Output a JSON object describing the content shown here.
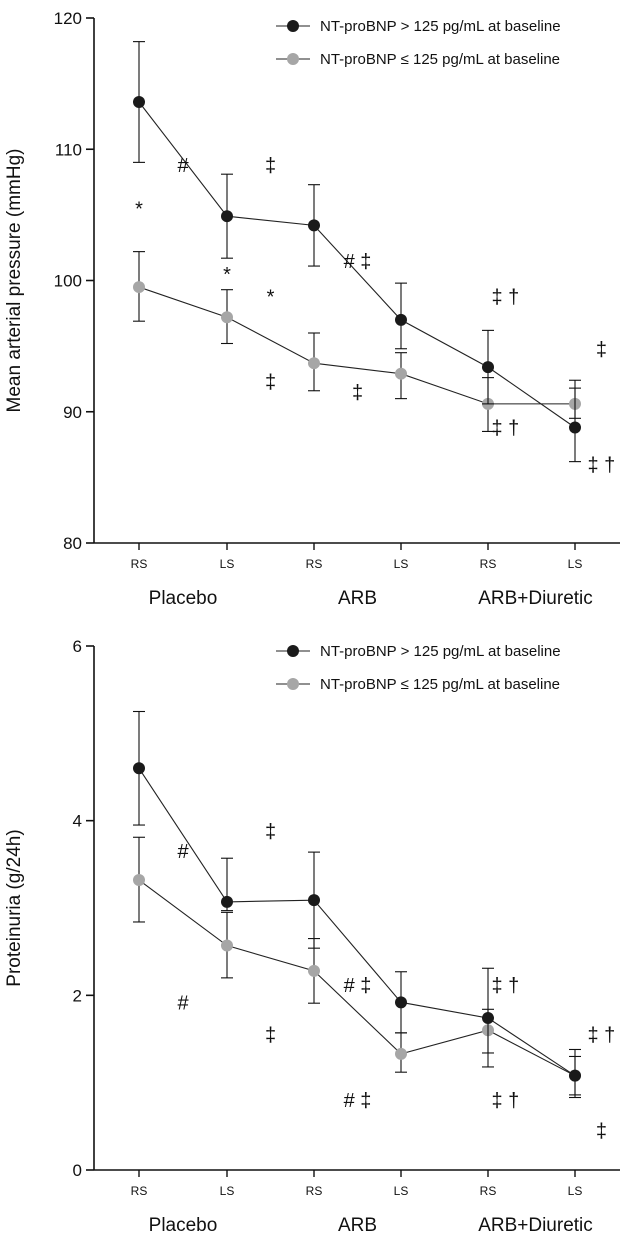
{
  "chart_data": [
    {
      "type": "line",
      "ylabel": "Mean arterial pressure (mmHg)",
      "ylim": [
        80,
        120
      ],
      "yticks": [
        80,
        90,
        100,
        110,
        120
      ],
      "conditions": [
        "RS",
        "LS",
        "RS",
        "LS",
        "RS",
        "LS"
      ],
      "groups": [
        "Placebo",
        "ARB",
        "ARB+Diuretic"
      ],
      "legend_position": "top-right",
      "series": [
        {
          "name": "NT-proBNP > 125 pg/mL at baseline",
          "color": "#1a1a1a",
          "values": [
            113.6,
            104.9,
            104.2,
            97.0,
            93.4,
            88.8
          ],
          "err_upper": [
            118.2,
            108.1,
            107.3,
            99.8,
            96.2,
            92.4
          ],
          "err_lower": [
            109.0,
            101.7,
            101.1,
            94.8,
            90.6,
            86.2
          ]
        },
        {
          "name": "NT-proBNP ≤ 125 pg/mL at baseline",
          "color": "#a6a6a6",
          "values": [
            99.5,
            97.2,
            93.7,
            92.9,
            90.6,
            90.6
          ],
          "err_upper": [
            102.2,
            99.3,
            96.0,
            94.5,
            92.6,
            91.8
          ],
          "err_lower": [
            96.9,
            95.2,
            91.6,
            91.0,
            88.5,
            89.5
          ]
        }
      ],
      "annotations": [
        {
          "x": 0,
          "y": 105.5,
          "text": "*"
        },
        {
          "x": 0.5,
          "y": 108.8,
          "text": "#"
        },
        {
          "x": 1,
          "y": 100.5,
          "text": "*"
        },
        {
          "x": 1.5,
          "y": 108.8,
          "text": "‡"
        },
        {
          "x": 1.5,
          "y": 98.8,
          "text": "*"
        },
        {
          "x": 1.5,
          "y": 92.3,
          "text": "‡"
        },
        {
          "x": 2.5,
          "y": 101.5,
          "text": "# ‡"
        },
        {
          "x": 2.5,
          "y": 91.5,
          "text": "‡"
        },
        {
          "x": 4.2,
          "y": 98.8,
          "text": "‡ †"
        },
        {
          "x": 4.2,
          "y": 88.8,
          "text": "‡ †"
        },
        {
          "x": 5.3,
          "y": 94.8,
          "text": "‡"
        },
        {
          "x": 5.3,
          "y": 86.0,
          "text": "‡ †"
        }
      ]
    },
    {
      "type": "line",
      "ylabel": "Proteinuria (g/24h)",
      "ylim": [
        0,
        6
      ],
      "yticks": [
        0,
        2,
        4,
        6
      ],
      "conditions": [
        "RS",
        "LS",
        "RS",
        "LS",
        "RS",
        "LS"
      ],
      "groups": [
        "Placebo",
        "ARB",
        "ARB+Diuretic"
      ],
      "legend_position": "top-right",
      "series": [
        {
          "name": "NT-proBNP > 125 pg/mL at baseline",
          "color": "#1a1a1a",
          "values": [
            4.6,
            3.07,
            3.09,
            1.92,
            1.74,
            1.08
          ],
          "err_upper": [
            5.25,
            3.57,
            3.64,
            2.27,
            2.31,
            1.38
          ],
          "err_lower": [
            3.95,
            2.97,
            2.54,
            1.57,
            1.34,
            0.83
          ]
        },
        {
          "name": "NT-proBNP ≤ 125 pg/mL at baseline",
          "color": "#a6a6a6",
          "values": [
            3.32,
            2.57,
            2.28,
            1.33,
            1.6,
            1.08
          ],
          "err_upper": [
            3.81,
            2.95,
            2.65,
            1.57,
            1.84,
            1.3
          ],
          "err_lower": [
            2.84,
            2.2,
            1.91,
            1.12,
            1.18,
            0.86
          ]
        }
      ],
      "annotations": [
        {
          "x": 0.5,
          "y": 3.65,
          "text": "#"
        },
        {
          "x": 0.5,
          "y": 1.92,
          "text": "#"
        },
        {
          "x": 1.5,
          "y": 3.88,
          "text": "‡"
        },
        {
          "x": 1.5,
          "y": 1.55,
          "text": "‡"
        },
        {
          "x": 2.5,
          "y": 2.12,
          "text": "# ‡"
        },
        {
          "x": 2.5,
          "y": 0.8,
          "text": "# ‡"
        },
        {
          "x": 4.2,
          "y": 2.12,
          "text": "‡ †"
        },
        {
          "x": 4.2,
          "y": 0.8,
          "text": "‡ †"
        },
        {
          "x": 5.3,
          "y": 1.55,
          "text": "‡ †"
        },
        {
          "x": 5.3,
          "y": 0.45,
          "text": "‡"
        }
      ]
    }
  ]
}
